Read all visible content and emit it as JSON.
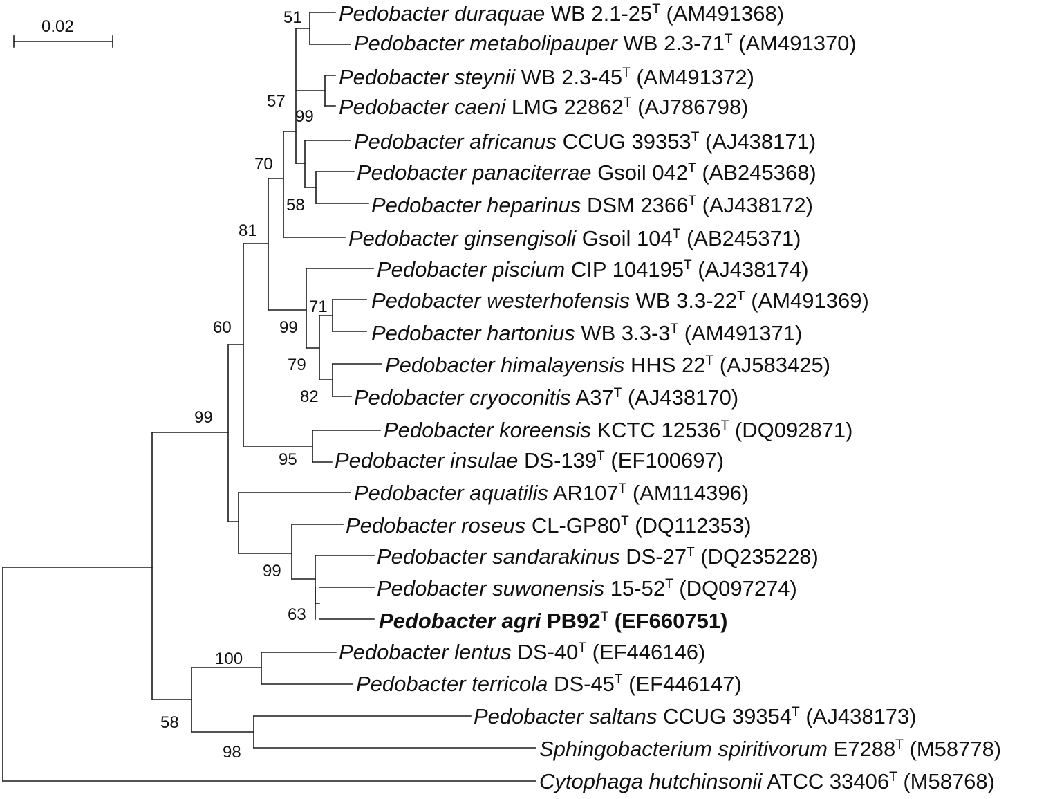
{
  "scale_bar": {
    "label": "0.02"
  },
  "taxa": [
    {
      "species": "Pedobacter duraquae",
      "strain": "WB 2.1-25",
      "accession": "(AM491368)"
    },
    {
      "species": "Pedobacter metabolipauper",
      "strain": "WB 2.3-71",
      "accession": "(AM491370)"
    },
    {
      "species": "Pedobacter steynii",
      "strain": "WB 2.3-45",
      "accession": "(AM491372)"
    },
    {
      "species": "Pedobacter caeni",
      "strain": "LMG 22862",
      "accession": "(AJ786798)"
    },
    {
      "species": "Pedobacter africanus",
      "strain": "CCUG 39353",
      "accession": "(AJ438171)"
    },
    {
      "species": "Pedobacter panaciterrae",
      "strain": "Gsoil 042",
      "accession": "(AB245368)"
    },
    {
      "species": "Pedobacter heparinus",
      "strain": "DSM 2366",
      "accession": "(AJ438172)"
    },
    {
      "species": "Pedobacter ginsengisoli",
      "strain": "Gsoil 104",
      "accession": "(AB245371)"
    },
    {
      "species": "Pedobacter piscium",
      "strain": "CIP 104195",
      "accession": "(AJ438174)"
    },
    {
      "species": "Pedobacter westerhofensis",
      "strain": "WB 3.3-22",
      "accession": "(AM491369)"
    },
    {
      "species": "Pedobacter hartonius",
      "strain": "WB 3.3-3",
      "accession": "(AM491371)"
    },
    {
      "species": "Pedobacter himalayensis",
      "strain": "HHS 22",
      "accession": "(AJ583425)"
    },
    {
      "species": "Pedobacter cryoconitis",
      "strain": " A37",
      "accession": "(AJ438170)"
    },
    {
      "species": "Pedobacter koreensis",
      "strain": " KCTC 12536",
      "accession": "(DQ092871)"
    },
    {
      "species": "Pedobacter insulae",
      "strain": " DS-139",
      "accession": "(EF100697)"
    },
    {
      "species": "Pedobacter aquatilis",
      "strain": " AR107",
      "accession": "(AM114396)"
    },
    {
      "species": "Pedobacter roseus",
      "strain": "CL-GP80",
      "accession": "(DQ112353)"
    },
    {
      "species": "Pedobacter sandarakinus",
      "strain": "DS-27",
      "accession": "(DQ235228)"
    },
    {
      "species": "Pedobacter suwonensis",
      "strain": "15-52",
      "accession": "(DQ097274)"
    },
    {
      "species": "Pedobacter agri",
      "strain": "PB92",
      "accession": "(EF660751)",
      "highlight": true
    },
    {
      "species": "Pedobacter lentus",
      "strain": "DS-40",
      "accession": "(EF446146)"
    },
    {
      "species": "Pedobacter terricola",
      "strain": "DS-45",
      "accession": "(EF446147)"
    },
    {
      "species": "Pedobacter saltans",
      "strain": "CCUG 39354",
      "accession": "(AJ438173)"
    },
    {
      "species": "Sphingobacterium spiritivorum",
      "strain": "E7288",
      "accession": "(M58778)"
    },
    {
      "species": "Cytophaga hutchinsonii",
      "strain": "ATCC 33406",
      "accession": "(M58768)"
    }
  ],
  "type_strain_mark": "T",
  "bootstrap_values": [
    "51",
    "57",
    "99",
    "70",
    "58",
    "81",
    "99",
    "71",
    "79",
    "82",
    "60",
    "95",
    "99",
    "99",
    "63",
    "100",
    "58",
    "98"
  ]
}
